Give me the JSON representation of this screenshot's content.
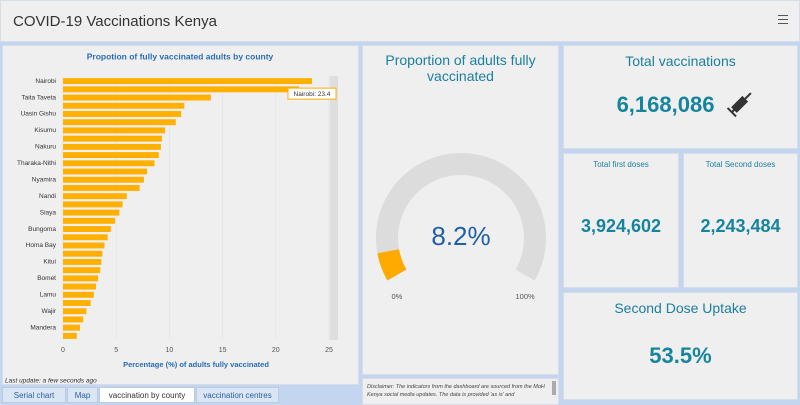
{
  "header": {
    "title": "COVID-19 Vaccinations Kenya"
  },
  "chart_data": [
    {
      "type": "bar",
      "title": "Propotion of fully vaccinated adults by county",
      "x_label": "Percentage (%) of adults fully vaccinated",
      "categories": [
        "Nairobi",
        null,
        "Taita Taveta",
        null,
        "Uasin Gishu",
        null,
        "Kisumu",
        null,
        "Nakuru",
        null,
        "Tharaka-Nithi",
        null,
        "Nyamira",
        null,
        "Nandi",
        null,
        "Siaya",
        null,
        "Bungoma",
        null,
        "Homa Bay",
        null,
        "Kitui",
        null,
        "Bomet",
        null,
        "Lamu",
        null,
        "Wajir",
        null,
        "Mandera",
        null
      ],
      "values": [
        23.4,
        22.2,
        13.9,
        11.4,
        11.1,
        10.6,
        9.6,
        9.3,
        9.2,
        9.0,
        8.6,
        7.9,
        7.6,
        7.2,
        6.0,
        5.6,
        5.3,
        4.9,
        4.5,
        4.2,
        3.9,
        3.7,
        3.6,
        3.5,
        3.3,
        3.1,
        2.9,
        2.6,
        2.2,
        1.9,
        1.6,
        1.3
      ],
      "color": "#ffb000",
      "xlim": [
        0,
        25
      ],
      "xticks": [
        0,
        5,
        10,
        15,
        20,
        25
      ],
      "grid": true,
      "tooltip": "Nairobi: 23.4"
    },
    {
      "type": "gauge",
      "title": "Proportion of adults fully vaccinated",
      "value": 8.2,
      "value_label": "8.2%",
      "lim": [
        0,
        100
      ],
      "ticks": [
        {
          "value": 0,
          "label": "0%"
        },
        {
          "value": 100,
          "label": "100%"
        }
      ],
      "color": "#ffaa00",
      "track_color": "#dcdcdc"
    }
  ],
  "panels": {
    "total": {
      "title": "Total vaccinations",
      "value": "6,168,086"
    },
    "first": {
      "title": "Total first doses",
      "value": "3,924,602"
    },
    "second": {
      "title": "Total Second doses",
      "value": "2,243,484"
    },
    "uptake": {
      "title": "Second Dose Uptake",
      "value": "53.5%"
    }
  },
  "last_update": "Last update: a few seconds ago",
  "disclaimer": "Disclaimer: The indicators from the dashboard are sourced from the MoH Kenya social media updates. The data is provided 'as is' and",
  "tabs": [
    "Serial chart",
    "Map",
    "vaccination by county",
    "vaccination centres"
  ]
}
